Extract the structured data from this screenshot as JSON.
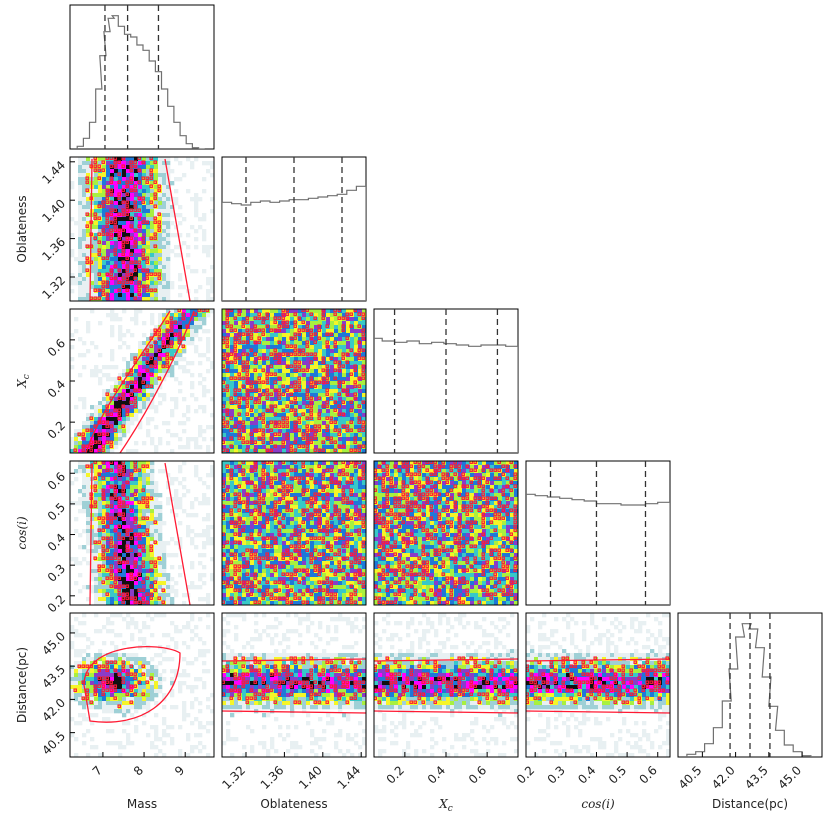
{
  "chart_data": {
    "type": "corner",
    "parameters": [
      {
        "name": "Mass",
        "label": "Mass",
        "label_style": "sans",
        "range": [
          6.2,
          9.7
        ],
        "ticks": [
          7,
          8,
          9
        ],
        "tick_labels": [
          "7",
          "8",
          "9"
        ],
        "quantiles": [
          7.05,
          7.6,
          8.35
        ]
      },
      {
        "name": "Oblateness",
        "label": "Oblateness",
        "label_style": "sans",
        "range": [
          1.295,
          1.445
        ],
        "ticks": [
          1.32,
          1.36,
          1.4,
          1.44
        ],
        "tick_labels": [
          "1.32",
          "1.36",
          "1.40",
          "1.44"
        ],
        "quantiles": [
          1.32,
          1.37,
          1.42
        ]
      },
      {
        "name": "Xc",
        "label": "X",
        "label_sub": "c",
        "label_style": "math",
        "range": [
          0.05,
          0.75
        ],
        "ticks": [
          0.2,
          0.4,
          0.6
        ],
        "tick_labels": [
          "0.2",
          "0.4",
          "0.6"
        ],
        "quantiles": [
          0.15,
          0.4,
          0.65
        ]
      },
      {
        "name": "cos_i",
        "label": "cos(i)",
        "label_style": "math",
        "range": [
          0.17,
          0.64
        ],
        "ticks": [
          0.2,
          0.3,
          0.4,
          0.5,
          0.6
        ],
        "tick_labels": [
          "0.2",
          "0.3",
          "0.4",
          "0.5",
          "0.6"
        ],
        "quantiles": [
          0.25,
          0.4,
          0.56
        ]
      },
      {
        "name": "Distance",
        "label": "Distance(pc)",
        "label_style": "sans",
        "range": [
          39.4,
          45.9
        ],
        "ticks": [
          40.5,
          42.0,
          43.5,
          45.0
        ],
        "tick_labels": [
          "40.5",
          "42.0",
          "43.5",
          "45.0"
        ],
        "quantiles": [
          41.75,
          42.65,
          43.55
        ]
      }
    ],
    "histograms": {
      "Mass": [
        {
          "x": 6.45,
          "y": 2
        },
        {
          "x": 6.6,
          "y": 8
        },
        {
          "x": 6.75,
          "y": 20
        },
        {
          "x": 6.9,
          "y": 45
        },
        {
          "x": 7.0,
          "y": 70
        },
        {
          "x": 7.1,
          "y": 88
        },
        {
          "x": 7.2,
          "y": 98
        },
        {
          "x": 7.3,
          "y": 100
        },
        {
          "x": 7.45,
          "y": 92
        },
        {
          "x": 7.6,
          "y": 86
        },
        {
          "x": 7.75,
          "y": 84
        },
        {
          "x": 7.9,
          "y": 78
        },
        {
          "x": 8.05,
          "y": 74
        },
        {
          "x": 8.2,
          "y": 66
        },
        {
          "x": 8.35,
          "y": 58
        },
        {
          "x": 8.5,
          "y": 45
        },
        {
          "x": 8.65,
          "y": 32
        },
        {
          "x": 8.8,
          "y": 20
        },
        {
          "x": 8.95,
          "y": 10
        },
        {
          "x": 9.1,
          "y": 4
        },
        {
          "x": 9.25,
          "y": 1
        },
        {
          "x": 9.4,
          "y": 0
        }
      ],
      "Oblateness": [
        {
          "x": 1.3,
          "y": 74
        },
        {
          "x": 1.31,
          "y": 73
        },
        {
          "x": 1.32,
          "y": 72
        },
        {
          "x": 1.33,
          "y": 74
        },
        {
          "x": 1.34,
          "y": 75
        },
        {
          "x": 1.35,
          "y": 74
        },
        {
          "x": 1.36,
          "y": 75
        },
        {
          "x": 1.37,
          "y": 76
        },
        {
          "x": 1.38,
          "y": 76
        },
        {
          "x": 1.39,
          "y": 77
        },
        {
          "x": 1.4,
          "y": 78
        },
        {
          "x": 1.41,
          "y": 79
        },
        {
          "x": 1.42,
          "y": 80
        },
        {
          "x": 1.43,
          "y": 83
        },
        {
          "x": 1.44,
          "y": 86
        }
      ],
      "Xc": [
        {
          "x": 0.06,
          "y": 86
        },
        {
          "x": 0.12,
          "y": 84
        },
        {
          "x": 0.18,
          "y": 83
        },
        {
          "x": 0.24,
          "y": 84
        },
        {
          "x": 0.3,
          "y": 82
        },
        {
          "x": 0.36,
          "y": 83
        },
        {
          "x": 0.42,
          "y": 82
        },
        {
          "x": 0.48,
          "y": 81
        },
        {
          "x": 0.54,
          "y": 80
        },
        {
          "x": 0.6,
          "y": 81
        },
        {
          "x": 0.66,
          "y": 81
        },
        {
          "x": 0.72,
          "y": 80
        }
      ],
      "cos_i": [
        {
          "x": 0.18,
          "y": 83
        },
        {
          "x": 0.22,
          "y": 82
        },
        {
          "x": 0.26,
          "y": 81
        },
        {
          "x": 0.3,
          "y": 80
        },
        {
          "x": 0.34,
          "y": 79
        },
        {
          "x": 0.38,
          "y": 78
        },
        {
          "x": 0.42,
          "y": 76
        },
        {
          "x": 0.46,
          "y": 76
        },
        {
          "x": 0.5,
          "y": 75
        },
        {
          "x": 0.54,
          "y": 75
        },
        {
          "x": 0.58,
          "y": 76
        },
        {
          "x": 0.62,
          "y": 77
        }
      ],
      "Distance": [
        {
          "x": 40.0,
          "y": 2
        },
        {
          "x": 40.4,
          "y": 4
        },
        {
          "x": 40.8,
          "y": 10
        },
        {
          "x": 41.2,
          "y": 22
        },
        {
          "x": 41.6,
          "y": 42
        },
        {
          "x": 41.9,
          "y": 66
        },
        {
          "x": 42.2,
          "y": 90
        },
        {
          "x": 42.5,
          "y": 100
        },
        {
          "x": 42.8,
          "y": 96
        },
        {
          "x": 43.1,
          "y": 82
        },
        {
          "x": 43.4,
          "y": 60
        },
        {
          "x": 43.7,
          "y": 38
        },
        {
          "x": 44.0,
          "y": 20
        },
        {
          "x": 44.4,
          "y": 9
        },
        {
          "x": 44.8,
          "y": 4
        },
        {
          "x": 45.2,
          "y": 1
        }
      ]
    },
    "colors": {
      "histogram_line": "#707070",
      "quantile_line": "#333333",
      "contour_outer": "#ff1a33",
      "density_levels": [
        "#e8f0f2",
        "#9fd0d6",
        "#f5f528",
        "#a8f040",
        "#38c8c8",
        "#1e78d8",
        "#8a3cc8",
        "#ff00ff",
        "#101010"
      ]
    }
  }
}
